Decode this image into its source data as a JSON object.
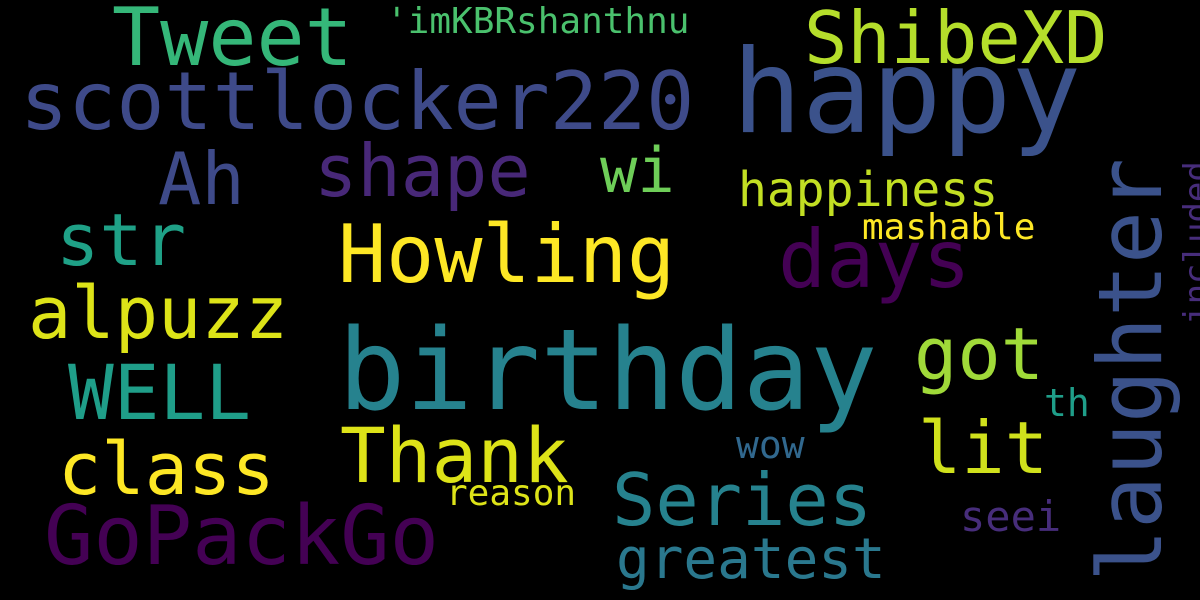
{
  "wordcloud": {
    "background": "#000000",
    "words": [
      {
        "text": "birthday",
        "color": "#26828e"
      },
      {
        "text": "happy",
        "color": "#3b528b"
      },
      {
        "text": "Howling",
        "color": "#fde725"
      },
      {
        "text": "scottlocker220",
        "color": "#3e4a89"
      },
      {
        "text": "GoPackGo",
        "color": "#440154"
      },
      {
        "text": "laughter",
        "color": "#3b528b"
      },
      {
        "text": "Tweet",
        "color": "#35b779"
      },
      {
        "text": "ShibeXD",
        "color": "#b5de2b"
      },
      {
        "text": "shape",
        "color": "#482878"
      },
      {
        "text": "days",
        "color": "#440154"
      },
      {
        "text": "alpuzz",
        "color": "#dde318"
      },
      {
        "text": "WELL",
        "color": "#1f9e89"
      },
      {
        "text": "class",
        "color": "#fde725"
      },
      {
        "text": "Thank",
        "color": "#dde318"
      },
      {
        "text": "Series",
        "color": "#26828e"
      },
      {
        "text": "got",
        "color": "#a0da39"
      },
      {
        "text": "lit",
        "color": "#d0e11c"
      },
      {
        "text": "str",
        "color": "#1fa187"
      },
      {
        "text": "Ah",
        "color": "#3e4a89"
      },
      {
        "text": "wi",
        "color": "#6ece58"
      },
      {
        "text": "happiness",
        "color": "#c2df23"
      },
      {
        "text": "greatest",
        "color": "#2a788e"
      },
      {
        "text": "'imKBRshanthnu",
        "color": "#4ac16d"
      },
      {
        "text": "mashable",
        "color": "#fde725"
      },
      {
        "text": "included",
        "color": "#472d7b"
      },
      {
        "text": "seei",
        "color": "#472d7b"
      },
      {
        "text": "reason",
        "color": "#dde318"
      },
      {
        "text": "wow",
        "color": "#31688e"
      },
      {
        "text": "th",
        "color": "#1f9e89"
      }
    ]
  }
}
